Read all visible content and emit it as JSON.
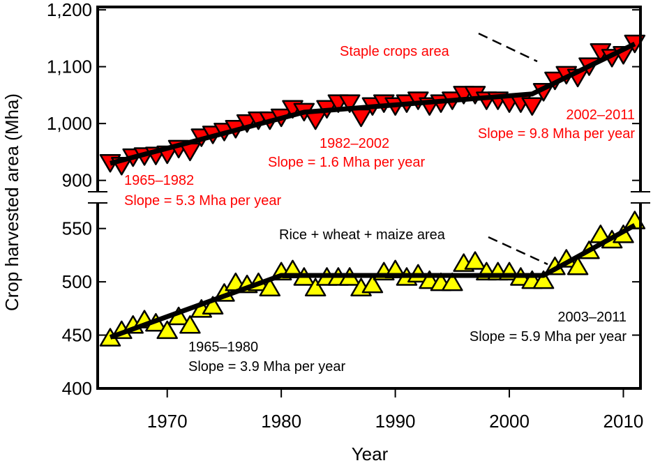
{
  "chart_data": {
    "type": "scatter",
    "xlabel": "Year",
    "ylabel": "Crop harvested area (Mha)",
    "xlim": [
      1963.9,
      2011.5
    ],
    "x_ticks": [
      1970,
      1980,
      1990,
      2000,
      2010
    ],
    "x_tick_labels": [
      "1970",
      "1980",
      "1990",
      "2000",
      "2010"
    ],
    "broken_y_axis": true,
    "grid": false,
    "panels": [
      {
        "ylim": [
          880,
          1205
        ],
        "y_ticks": [
          900,
          1000,
          1100,
          1200
        ],
        "y_tick_labels": [
          "900",
          "1,000",
          "1,100",
          "1,200"
        ],
        "series": {
          "name": "Staple crops area",
          "color": "#ff0000",
          "marker": "down-triangle",
          "x": [
            1965,
            1966,
            1967,
            1968,
            1969,
            1970,
            1971,
            1972,
            1973,
            1974,
            1975,
            1976,
            1977,
            1978,
            1979,
            1980,
            1981,
            1982,
            1983,
            1984,
            1985,
            1986,
            1987,
            1988,
            1989,
            1990,
            1991,
            1992,
            1993,
            1994,
            1995,
            1996,
            1997,
            1998,
            1999,
            2000,
            2001,
            2002,
            2003,
            2004,
            2005,
            2006,
            2007,
            2008,
            2009,
            2010,
            2011
          ],
          "y": [
            930,
            925,
            940,
            942,
            943,
            945,
            955,
            950,
            975,
            980,
            985,
            990,
            1000,
            1005,
            1005,
            1010,
            1025,
            1020,
            1005,
            1025,
            1035,
            1035,
            1010,
            1030,
            1035,
            1030,
            1035,
            1040,
            1030,
            1035,
            1040,
            1050,
            1050,
            1040,
            1040,
            1035,
            1035,
            1030,
            1055,
            1075,
            1085,
            1080,
            1100,
            1125,
            1115,
            1120,
            1140
          ]
        },
        "fit": {
          "x": [
            1965,
            1982,
            2002,
            2011
          ],
          "y": [
            930,
            1020,
            1052,
            1140
          ]
        },
        "annotations": [
          {
            "period": "1965–1982",
            "slope": "Slope = 5.3 Mha per year"
          },
          {
            "period": "1982–2002",
            "slope": "Slope = 1.6 Mha per year"
          },
          {
            "period": "2002–2011",
            "slope": "Slope = 9.8 Mha per year"
          }
        ]
      },
      {
        "ylim": [
          400,
          574
        ],
        "y_ticks": [
          400,
          450,
          500,
          550
        ],
        "y_tick_labels": [
          "400",
          "450",
          "500",
          "550"
        ],
        "series": {
          "name": "Rice + wheat + maize area",
          "color": "#ffff00",
          "marker": "up-triangle",
          "x": [
            1965,
            1966,
            1967,
            1968,
            1969,
            1970,
            1971,
            1972,
            1973,
            1974,
            1975,
            1976,
            1977,
            1978,
            1979,
            1980,
            1981,
            1982,
            1983,
            1984,
            1985,
            1986,
            1987,
            1988,
            1989,
            1990,
            1991,
            1992,
            1993,
            1994,
            1995,
            1996,
            1997,
            1998,
            1999,
            2000,
            2001,
            2002,
            2003,
            2004,
            2005,
            2006,
            2007,
            2008,
            2009,
            2010,
            2011
          ],
          "y": [
            448,
            455,
            460,
            465,
            462,
            455,
            468,
            460,
            475,
            478,
            490,
            500,
            498,
            500,
            495,
            510,
            512,
            505,
            495,
            505,
            505,
            505,
            495,
            498,
            510,
            512,
            505,
            508,
            502,
            500,
            500,
            518,
            520,
            510,
            510,
            510,
            505,
            502,
            502,
            515,
            522,
            515,
            530,
            545,
            540,
            545,
            558
          ]
        },
        "fit": {
          "x": [
            1965,
            1980,
            2003,
            2011
          ],
          "y": [
            448,
            506,
            506,
            553
          ]
        },
        "annotations": [
          {
            "period": "1965–1980",
            "slope": "Slope = 3.9 Mha per year"
          },
          {
            "period": "2003–2011",
            "slope": "Slope = 5.9 Mha per year"
          }
        ]
      }
    ]
  }
}
